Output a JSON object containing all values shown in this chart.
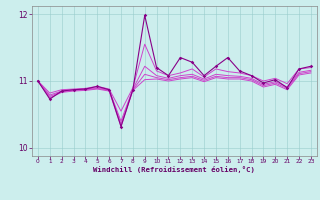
{
  "x": [
    0,
    1,
    2,
    3,
    4,
    5,
    6,
    7,
    8,
    9,
    10,
    11,
    12,
    13,
    14,
    15,
    16,
    17,
    18,
    19,
    20,
    21,
    22,
    23
  ],
  "main_y": [
    11.0,
    10.73,
    10.85,
    10.87,
    10.88,
    10.92,
    10.87,
    10.32,
    10.87,
    11.98,
    11.2,
    11.08,
    11.35,
    11.28,
    11.08,
    11.22,
    11.35,
    11.15,
    11.08,
    10.97,
    11.02,
    10.9,
    11.18,
    11.22
  ],
  "smooth1": [
    11.0,
    10.82,
    10.87,
    10.88,
    10.89,
    10.92,
    10.88,
    10.55,
    10.9,
    11.55,
    11.15,
    11.08,
    11.12,
    11.18,
    11.06,
    11.18,
    11.14,
    11.12,
    11.08,
    11.0,
    11.04,
    10.96,
    11.18,
    11.2
  ],
  "smooth2": [
    11.0,
    10.79,
    10.85,
    10.87,
    10.88,
    10.9,
    10.87,
    10.4,
    10.88,
    11.22,
    11.08,
    11.04,
    11.08,
    11.1,
    11.03,
    11.1,
    11.08,
    11.07,
    11.04,
    10.95,
    10.99,
    10.91,
    11.13,
    11.16
  ],
  "smooth3": [
    11.0,
    10.77,
    10.84,
    10.86,
    10.87,
    10.89,
    10.86,
    10.36,
    10.87,
    11.1,
    11.05,
    11.02,
    11.05,
    11.07,
    11.01,
    11.07,
    11.05,
    11.05,
    11.02,
    10.93,
    10.97,
    10.89,
    11.11,
    11.14
  ],
  "smooth4": [
    11.0,
    10.75,
    10.83,
    10.85,
    10.86,
    10.88,
    10.85,
    10.32,
    10.86,
    11.02,
    11.03,
    11.0,
    11.03,
    11.05,
    10.99,
    11.05,
    11.03,
    11.03,
    11.0,
    10.91,
    10.95,
    10.87,
    11.09,
    11.12
  ],
  "xlim": [
    -0.5,
    23.5
  ],
  "ylim": [
    9.88,
    12.12
  ],
  "yticks": [
    10,
    11,
    12
  ],
  "xticks": [
    0,
    1,
    2,
    3,
    4,
    5,
    6,
    7,
    8,
    9,
    10,
    11,
    12,
    13,
    14,
    15,
    16,
    17,
    18,
    19,
    20,
    21,
    22,
    23
  ],
  "xlabel": "Windchill (Refroidissement éolien,°C)",
  "color_main": "#880088",
  "color_smooth": "#cc44cc",
  "bg_color": "#cceeed",
  "grid_color": "#99cccc",
  "text_color": "#660066"
}
